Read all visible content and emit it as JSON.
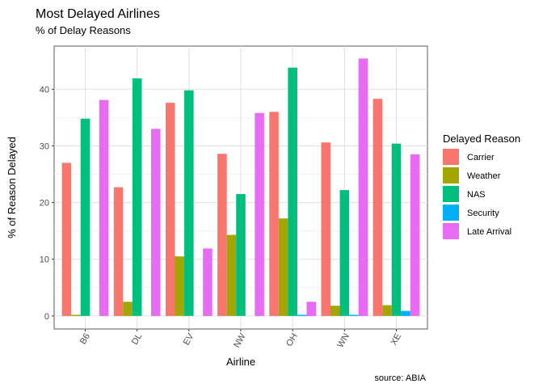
{
  "chart_data": {
    "type": "bar",
    "title": "Most Delayed Airlines",
    "subtitle": "% of Delay Reasons",
    "xlabel": "Airline",
    "ylabel": "% of Reason Delayed",
    "caption": "source: ABIA",
    "categories": [
      "B6",
      "DL",
      "EV",
      "NW",
      "OH",
      "WN",
      "XE"
    ],
    "ylim": [
      -2.3,
      47.6
    ],
    "yticks": [
      0,
      10,
      20,
      30,
      40
    ],
    "grid": true,
    "legend": {
      "title": "Delayed Reason",
      "position": "right"
    },
    "series": [
      {
        "name": "Carrier",
        "color": "#F8766D",
        "values": [
          27.0,
          22.7,
          37.6,
          28.6,
          36.0,
          30.6,
          38.3
        ]
      },
      {
        "name": "Weather",
        "color": "#A3A500",
        "values": [
          0.2,
          2.5,
          10.5,
          14.3,
          17.2,
          1.8,
          1.9
        ]
      },
      {
        "name": "NAS",
        "color": "#00BF7D",
        "values": [
          34.8,
          41.9,
          39.8,
          21.5,
          43.8,
          22.2,
          30.4
        ]
      },
      {
        "name": "Security",
        "color": "#00B0F6",
        "values": [
          0,
          0,
          0,
          0,
          0.2,
          0.2,
          0.9
        ]
      },
      {
        "name": "Late Arrival",
        "color": "#E76BF3",
        "values": [
          38.1,
          33.0,
          11.9,
          35.8,
          2.5,
          45.4,
          28.5
        ]
      }
    ]
  }
}
